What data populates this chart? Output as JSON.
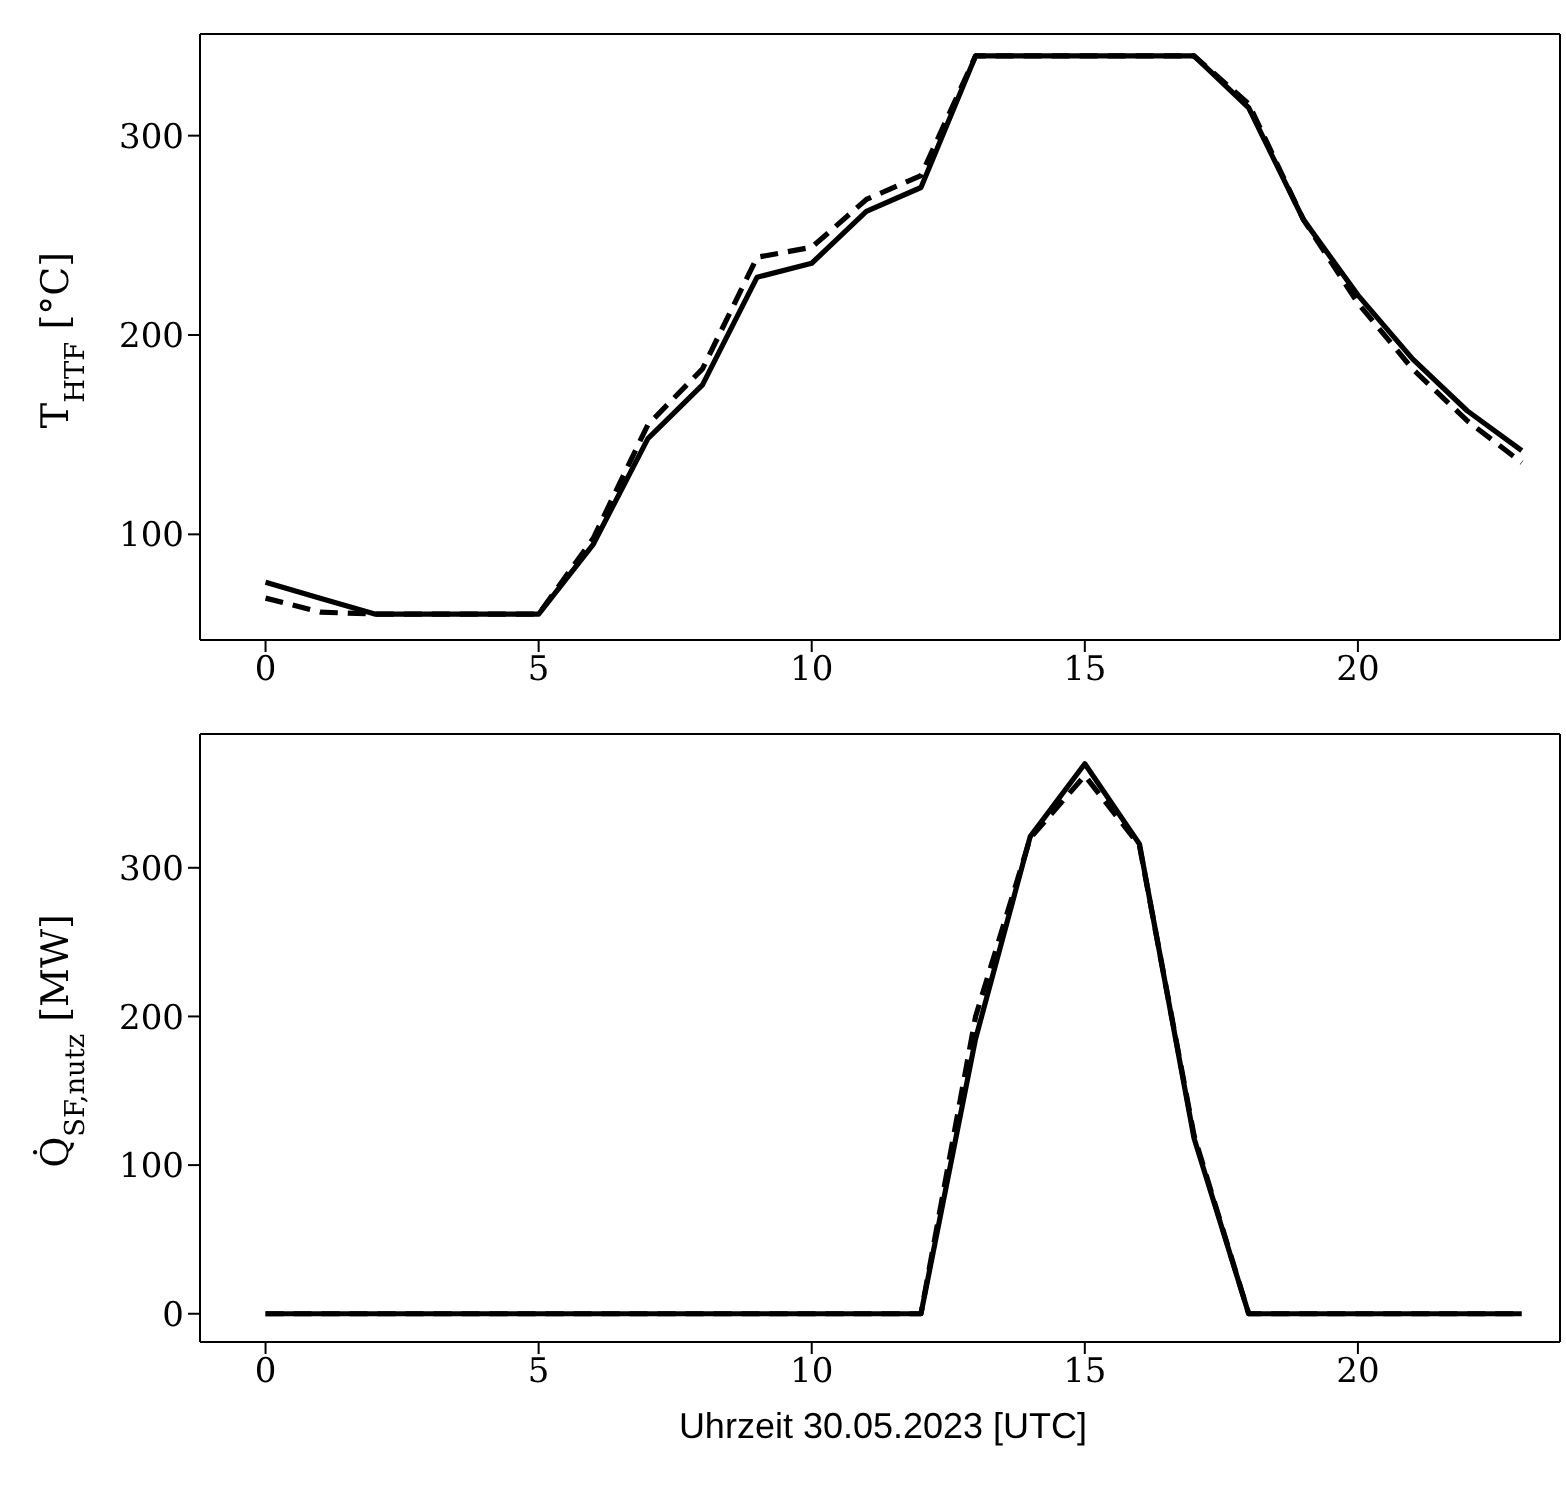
{
  "chart_data": [
    {
      "type": "line",
      "ylabel": "T$_{HTF}$ [°C]",
      "x": [
        0,
        1,
        2,
        3,
        4,
        5,
        6,
        7,
        8,
        9,
        10,
        11,
        12,
        13,
        14,
        15,
        16,
        17,
        18,
        19,
        20,
        21,
        22,
        23
      ],
      "xlim": [
        -1.2,
        23.7
      ],
      "xticks": [
        0,
        5,
        10,
        15,
        20
      ],
      "ylim": [
        47,
        351
      ],
      "yticks": [
        100,
        200,
        300
      ],
      "legend": false,
      "series": [
        {
          "color": "#000000",
          "line_style": "solid",
          "values": [
            76,
            68,
            60,
            60,
            60,
            60,
            95,
            148,
            175,
            229,
            236,
            262,
            274,
            340,
            340,
            340,
            340,
            340,
            314,
            258,
            220,
            188,
            162,
            142
          ]
        },
        {
          "color": "#000000",
          "line_style": "dashed",
          "values": [
            68,
            61,
            60,
            60,
            60,
            60,
            98,
            155,
            183,
            239,
            244,
            268,
            280,
            340,
            340,
            340,
            340,
            340,
            316,
            258,
            216,
            183,
            157,
            136
          ]
        }
      ]
    },
    {
      "type": "line",
      "xlabel": "Uhrzeit 30.05.2023 [UTC]",
      "ylabel": "Q̇$_{SF,nutz}$ [MW]",
      "x": [
        0,
        1,
        2,
        3,
        4,
        5,
        6,
        7,
        8,
        9,
        10,
        11,
        12,
        13,
        14,
        15,
        16,
        17,
        18,
        19,
        20,
        21,
        22,
        23
      ],
      "xlim": [
        -1.2,
        23.7
      ],
      "xticks": [
        0,
        5,
        10,
        15,
        20
      ],
      "ylim": [
        -19,
        390
      ],
      "yticks": [
        0,
        100,
        200,
        300
      ],
      "legend": false,
      "series": [
        {
          "color": "#000000",
          "line_style": "solid",
          "values": [
            0,
            0,
            0,
            0,
            0,
            0,
            0,
            0,
            0,
            0,
            0,
            0,
            0,
            185,
            321,
            370,
            316,
            118,
            0,
            0,
            0,
            0,
            0,
            0
          ]
        },
        {
          "color": "#000000",
          "line_style": "dashed",
          "values": [
            0,
            0,
            0,
            0,
            0,
            0,
            0,
            0,
            0,
            0,
            0,
            0,
            0,
            200,
            320,
            362,
            315,
            120,
            0,
            0,
            0,
            0,
            0,
            0
          ]
        }
      ]
    }
  ]
}
